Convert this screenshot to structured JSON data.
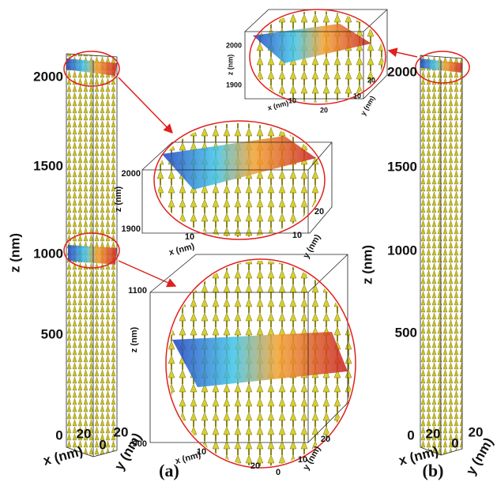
{
  "panels": [
    {
      "label": "(a)",
      "column": {
        "z_axis_title": "z (nm)",
        "z_ticks": [
          "500",
          "1000",
          "1500",
          "2000"
        ],
        "x_axis_title": "x (nm)",
        "x_ticks": [
          "0",
          "20"
        ],
        "y_axis_title": "y (nm)",
        "y_ticks": [
          "0",
          "20"
        ]
      },
      "insets": [
        {
          "z_axis_title": "z (nm)",
          "z_ticks": [
            "1900",
            "2000"
          ],
          "x_axis_title": "x (nm)",
          "x_ticks": [
            "10"
          ],
          "y_axis_title": "y (nm)",
          "y_ticks": [
            "10",
            "20"
          ]
        },
        {
          "z_axis_title": "z (nm)",
          "z_ticks": [
            "900",
            "1100"
          ],
          "x_axis_title": "x (nm)",
          "x_ticks": [
            "10",
            "20"
          ],
          "y_axis_title": "y (nm)",
          "y_ticks": [
            "0",
            "10",
            "20"
          ]
        }
      ]
    },
    {
      "label": "(b)",
      "column": {
        "z_axis_title": "z (nm)",
        "z_ticks": [
          "500",
          "1000",
          "1500",
          "2000"
        ],
        "x_axis_title": "x (nm)",
        "x_ticks": [
          "0",
          "20"
        ],
        "y_axis_title": "y (nm)",
        "y_ticks": [
          "0",
          "20"
        ]
      },
      "insets": [
        {
          "z_axis_title": "z (nm)",
          "z_ticks": [
            "1900",
            "2000"
          ],
          "x_axis_title": "x (nm)",
          "x_ticks": [
            "10",
            "20"
          ],
          "y_axis_title": "y (nm)",
          "y_ticks": [
            "10",
            "20"
          ]
        }
      ]
    }
  ]
}
